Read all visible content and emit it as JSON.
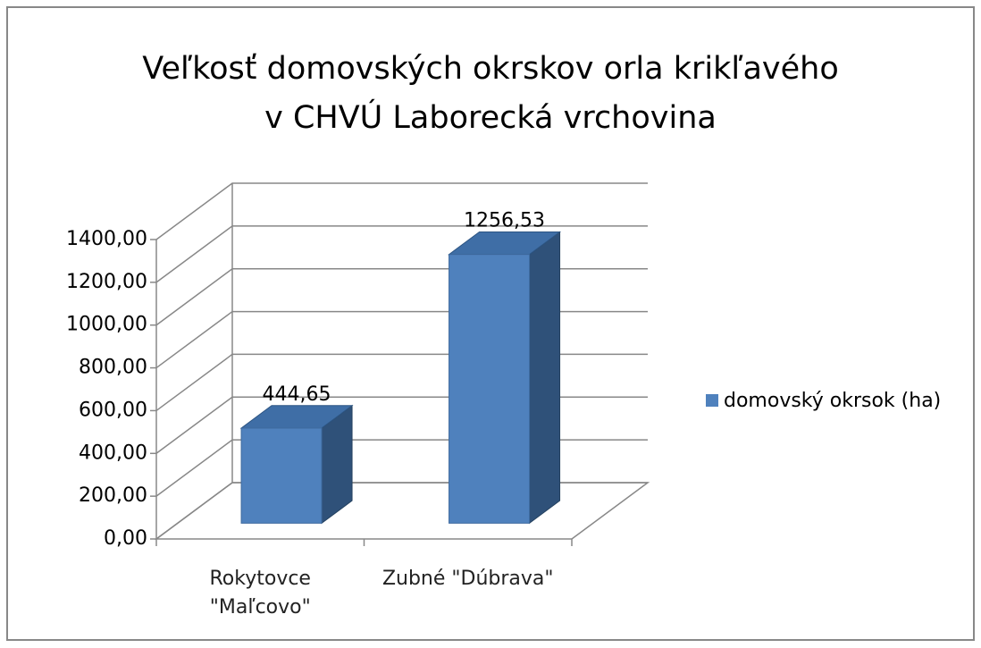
{
  "chart_data": {
    "type": "bar3d",
    "title": [
      "Veľkosť domovských okrskov orla krikľavého",
      "v CHVÚ Laborecká vrchovina"
    ],
    "categories": [
      "Rokytovce \"Maľcovo\"",
      "Zubné \"Dúbrava\""
    ],
    "series": [
      {
        "name": "domovský okrsok (ha)",
        "color": "#4f81bd",
        "values": [
          444.65,
          1256.53
        ],
        "value_labels": [
          "444,65",
          "1256,53"
        ]
      }
    ],
    "ylim": [
      0,
      1400
    ],
    "yticks": [
      {
        "value": 0,
        "label": "0,00"
      },
      {
        "value": 200,
        "label": "200,00"
      },
      {
        "value": 400,
        "label": "400,00"
      },
      {
        "value": 600,
        "label": "600,00"
      },
      {
        "value": 800,
        "label": "800,00"
      },
      {
        "value": 1000,
        "label": "1000,00"
      },
      {
        "value": 1200,
        "label": "1200,00"
      },
      {
        "value": 1400,
        "label": "1400,00"
      }
    ],
    "grid": true,
    "legend": "right"
  }
}
